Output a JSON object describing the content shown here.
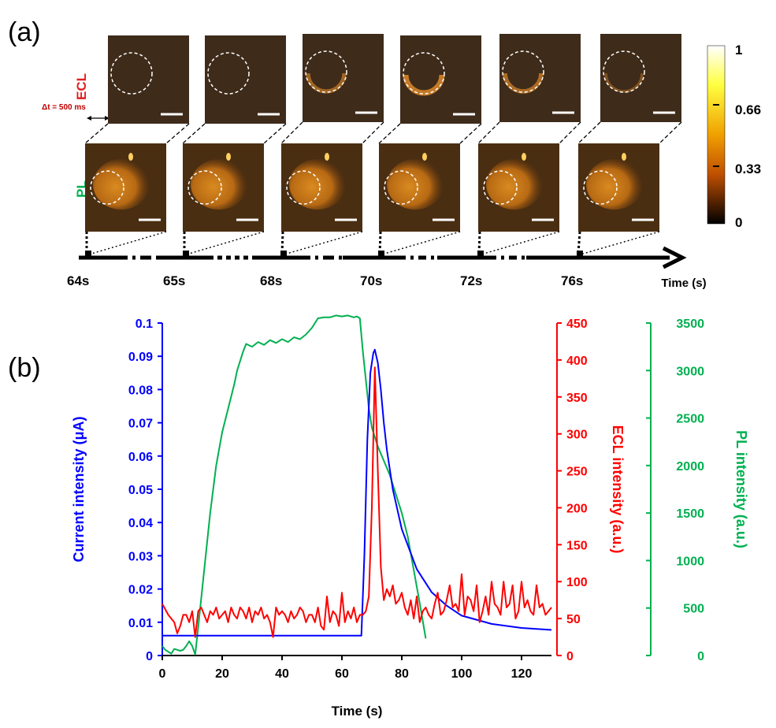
{
  "panel_a": {
    "label": "(a)",
    "ecl_label": "ECL",
    "pl_label": "PL",
    "dt_label": "Δt = 500 ms",
    "time_label": "Time (s)",
    "times": [
      "64s",
      "65s",
      "68s",
      "70s",
      "72s",
      "76s"
    ],
    "ecl_arc_intensity": [
      0.0,
      0.0,
      0.45,
      0.8,
      0.55,
      0.1
    ],
    "colorbar": {
      "ticks": [
        "1",
        "0.66",
        "0.33",
        "0"
      ],
      "stops": [
        "#ffffff",
        "#ffff40",
        "#f0a000",
        "#c05000",
        "#000000"
      ]
    }
  },
  "panel_b": {
    "label": "(b)"
  },
  "chart_data": {
    "type": "line",
    "xlabel": "Time (s)",
    "xlim": [
      0,
      130
    ],
    "xticks": [
      0,
      20,
      40,
      60,
      80,
      100,
      120
    ],
    "axes": {
      "left": {
        "label": "Current intensity (μA)",
        "color": "#0000ff",
        "ylim": [
          0,
          0.1
        ],
        "ticks": [
          0,
          0.01,
          0.02,
          0.03,
          0.04,
          0.05,
          0.06,
          0.07,
          0.08,
          0.09,
          0.1
        ]
      },
      "right1": {
        "label": "ECL intensity (a.u.)",
        "color": "#ff0000",
        "ylim": [
          0,
          450
        ],
        "ticks": [
          0,
          50,
          100,
          150,
          200,
          250,
          300,
          350,
          400,
          450
        ]
      },
      "right2": {
        "label": "PL intensity (a.u.)",
        "color": "#00b050",
        "ylim": [
          0,
          3500
        ],
        "ticks": [
          0,
          500,
          1000,
          1500,
          2000,
          2500,
          3000,
          3500
        ]
      }
    },
    "series": [
      {
        "axis": "left",
        "color": "#0000ff",
        "x": [
          0,
          66.5,
          67.5,
          68.5,
          69.5,
          70.5,
          71,
          72,
          73,
          74,
          75,
          77,
          80,
          85,
          90,
          95,
          100,
          110,
          120,
          130
        ],
        "y": [
          0.006,
          0.006,
          0.03,
          0.065,
          0.085,
          0.091,
          0.092,
          0.088,
          0.08,
          0.07,
          0.062,
          0.05,
          0.038,
          0.026,
          0.019,
          0.015,
          0.012,
          0.0095,
          0.0083,
          0.0077
        ]
      },
      {
        "axis": "right1",
        "color": "#ff0000",
        "x": [
          0,
          2,
          4,
          5,
          6,
          7,
          8,
          9,
          10,
          11,
          12,
          13,
          14,
          15,
          16,
          17,
          18,
          19,
          20,
          21,
          22,
          23,
          24,
          25,
          26,
          27,
          28,
          29,
          30,
          31,
          32,
          33,
          34,
          35,
          36,
          37,
          38,
          39,
          40,
          41,
          42,
          43,
          44,
          45,
          46,
          47,
          48,
          49,
          50,
          51,
          52,
          53,
          54,
          55,
          56,
          57,
          58,
          59,
          60,
          61,
          62,
          63,
          64,
          65,
          66,
          67,
          68,
          69,
          70,
          71,
          72,
          73,
          74,
          75,
          76,
          77,
          78,
          79,
          80,
          81,
          82,
          83,
          84,
          85,
          86,
          87,
          88,
          89,
          90,
          91,
          92,
          93,
          94,
          95,
          96,
          97,
          98,
          99,
          100,
          101,
          102,
          103,
          104,
          105,
          106,
          107,
          108,
          109,
          110,
          111,
          112,
          113,
          114,
          115,
          116,
          117,
          118,
          119,
          120,
          121,
          122,
          123,
          124,
          125,
          126,
          127,
          128,
          129,
          130
        ],
        "y": [
          70,
          55,
          45,
          30,
          40,
          55,
          55,
          45,
          60,
          25,
          60,
          65,
          55,
          45,
          60,
          55,
          65,
          50,
          55,
          60,
          45,
          65,
          55,
          50,
          65,
          60,
          50,
          65,
          45,
          60,
          55,
          65,
          50,
          55,
          45,
          25,
          65,
          55,
          60,
          55,
          45,
          60,
          50,
          55,
          65,
          60,
          45,
          55,
          55,
          45,
          65,
          40,
          35,
          80,
          45,
          60,
          55,
          40,
          85,
          45,
          60,
          50,
          65,
          45,
          55,
          55,
          60,
          80,
          200,
          390,
          250,
          120,
          75,
          90,
          80,
          95,
          70,
          75,
          85,
          65,
          55,
          75,
          50,
          80,
          45,
          60,
          65,
          55,
          50,
          70,
          85,
          55,
          60,
          75,
          95,
          65,
          70,
          60,
          110,
          55,
          80,
          75,
          60,
          95,
          45,
          60,
          80,
          55,
          100,
          70,
          65,
          55,
          100,
          65,
          70,
          95,
          50,
          60,
          100,
          65,
          75,
          60,
          55,
          95,
          65,
          70,
          55,
          60,
          65
        ]
      },
      {
        "axis": "right2",
        "color": "#00b050",
        "x": [
          0,
          1,
          2,
          3,
          4,
          5,
          6,
          7,
          8,
          9,
          10,
          11,
          12,
          14,
          16,
          18,
          20,
          22,
          24,
          25,
          26,
          27,
          28,
          30,
          32,
          34,
          36,
          38,
          40,
          42,
          44,
          46,
          48,
          50,
          52,
          54,
          56,
          58,
          60,
          62,
          64,
          65,
          66,
          67,
          68,
          69,
          70,
          71,
          72,
          74,
          76,
          78,
          80,
          82,
          84,
          86,
          88
        ],
        "y": [
          100,
          60,
          40,
          20,
          70,
          60,
          50,
          60,
          100,
          150,
          100,
          10,
          300,
          900,
          1500,
          2000,
          2350,
          2600,
          2850,
          3000,
          3100,
          3200,
          3280,
          3250,
          3300,
          3270,
          3320,
          3290,
          3330,
          3300,
          3350,
          3330,
          3380,
          3450,
          3550,
          3560,
          3560,
          3580,
          3570,
          3580,
          3560,
          3570,
          3550,
          3200,
          2900,
          2600,
          2400,
          2300,
          2200,
          2050,
          1900,
          1700,
          1500,
          1250,
          900,
          550,
          180
        ]
      }
    ]
  }
}
